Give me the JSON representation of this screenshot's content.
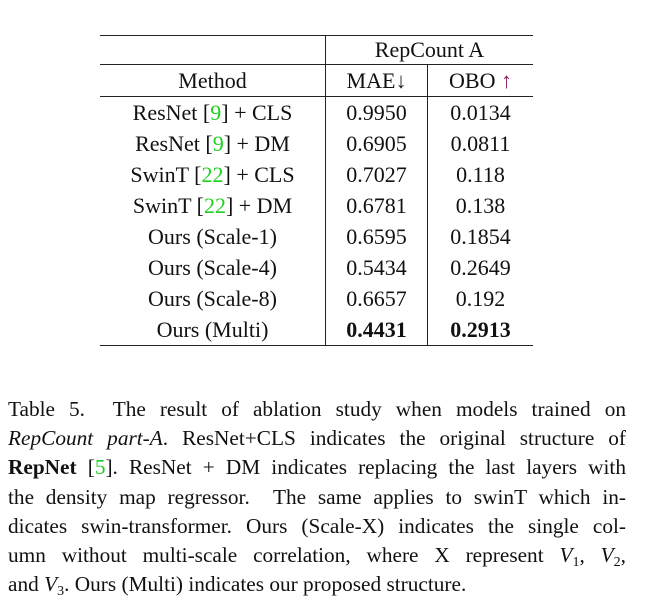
{
  "table": {
    "group_header": "RepCount A",
    "method_header": "Method",
    "mae_header": "MAE",
    "mae_arrow": "↓",
    "obo_header": "OBO ",
    "obo_arrow": "↑",
    "rows": [
      {
        "pre": "ResNet [",
        "cite": "9",
        "post": "] + CLS",
        "mae": "0.9950",
        "obo": "0.0134"
      },
      {
        "pre": "ResNet [",
        "cite": "9",
        "post": "] + DM",
        "mae": "0.6905",
        "obo": "0.0811"
      },
      {
        "pre": "SwinT [",
        "cite": "22",
        "post": "] + CLS",
        "mae": "0.7027",
        "obo": "0.118"
      },
      {
        "pre": "SwinT [",
        "cite": "22",
        "post": "] + DM",
        "mae": "0.6781",
        "obo": "0.138"
      },
      {
        "pre": "Ours (Scale-1)",
        "cite": "",
        "post": "",
        "mae": "0.6595",
        "obo": "0.1854"
      },
      {
        "pre": "Ours (Scale-4)",
        "cite": "",
        "post": "",
        "mae": "0.5434",
        "obo": "0.2649"
      },
      {
        "pre": "Ours (Scale-8)",
        "cite": "",
        "post": "",
        "mae": "0.6657",
        "obo": "0.192"
      },
      {
        "pre": "Ours (Multi)",
        "cite": "",
        "post": "",
        "mae": "0.4431",
        "obo": "0.2913",
        "bold": true
      }
    ]
  },
  "caption": {
    "l1": "Table 5.  The result of ablation study when models trained on",
    "l2_italic": "RepCount part-A",
    "l2_rest": ". ResNet+CLS indicates the original structure of",
    "l3_bold": "RepNet",
    "l3_a": " [",
    "l3_cite": "5",
    "l3_b": "]. ResNet + DM indicates replacing the last layers with",
    "l4": "the density map regressor.  The same applies to swinT which in-",
    "l5": "dicates swin-transformer. Ours (Scale-X) indicates the single col-",
    "l6_a": "umn without multi-scale correlation, where X represent ",
    "v": "V",
    "s1": "1",
    "s2": "2",
    "s3": "3",
    "comma": ", ",
    "l6_end": ",",
    "l7_a": "and ",
    "l7_b": ". Ours (Multi) indicates our proposed structure."
  }
}
